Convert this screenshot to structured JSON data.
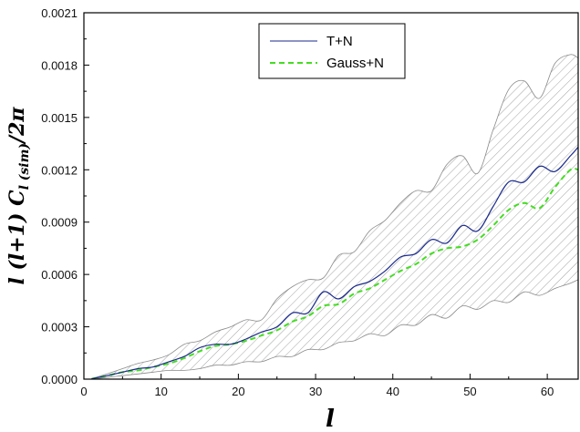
{
  "chart_data": {
    "type": "line",
    "xlabel": "l",
    "ylabel": "l (l+1) C_{l(sim)}/2π",
    "ylabel_main": "l (l+1) C",
    "ylabel_sub": "l (sim)",
    "ylabel_tail": "/2π",
    "xlim": [
      0,
      64
    ],
    "ylim": [
      0,
      0.0021
    ],
    "x_ticks": [
      0,
      10,
      20,
      30,
      40,
      50,
      60
    ],
    "x_tick_labels": [
      "0",
      "10",
      "20",
      "30",
      "40",
      "50",
      "60"
    ],
    "y_ticks": [
      0,
      0.0003,
      0.0006,
      0.0009,
      0.0012,
      0.0015,
      0.0018,
      0.0021
    ],
    "y_tick_labels": [
      "0.0000",
      "0.0003",
      "0.0006",
      "0.0009",
      "0.0012",
      "0.0015",
      "0.0018",
      "0.0021"
    ],
    "grid": false,
    "legend_position": "top-center",
    "series": [
      {
        "name": "T+N",
        "style": "solid",
        "color": "#1a2a8c",
        "x": [
          1,
          3,
          5,
          7,
          9,
          11,
          13,
          15,
          17,
          19,
          21,
          23,
          25,
          27,
          29,
          31,
          33,
          35,
          37,
          39,
          41,
          43,
          45,
          47,
          49,
          51,
          53,
          55,
          57,
          59,
          61,
          63,
          64
        ],
        "y": [
          2e-06,
          2e-05,
          4e-05,
          6e-05,
          7e-05,
          0.0001,
          0.00013,
          0.00018,
          0.0002,
          0.0002,
          0.00023,
          0.00027,
          0.0003,
          0.00038,
          0.00038,
          0.0005,
          0.00046,
          0.00053,
          0.00056,
          0.00062,
          0.0007,
          0.00072,
          0.0008,
          0.00078,
          0.00088,
          0.00085,
          0.00099,
          0.00113,
          0.00113,
          0.00122,
          0.00119,
          0.00128,
          0.00133
        ]
      },
      {
        "name": "Gauss+N",
        "style": "dashed",
        "color": "#44dd22",
        "x": [
          1,
          3,
          5,
          7,
          9,
          11,
          13,
          15,
          17,
          19,
          21,
          23,
          25,
          27,
          29,
          31,
          33,
          35,
          37,
          39,
          41,
          43,
          45,
          47,
          49,
          51,
          53,
          55,
          57,
          59,
          61,
          63,
          64
        ],
        "y": [
          2e-06,
          2e-05,
          4e-05,
          5e-05,
          7e-05,
          9e-05,
          0.00012,
          0.00016,
          0.00019,
          0.0002,
          0.00022,
          0.00025,
          0.00028,
          0.00033,
          0.00036,
          0.00042,
          0.00043,
          0.00049,
          0.00052,
          0.00057,
          0.00062,
          0.00066,
          0.00072,
          0.00075,
          0.00076,
          0.0008,
          0.00088,
          0.00097,
          0.00101,
          0.00098,
          0.0011,
          0.0012,
          0.0012
        ]
      }
    ],
    "band": {
      "x": [
        1,
        3,
        5,
        7,
        9,
        11,
        13,
        15,
        17,
        19,
        21,
        23,
        25,
        27,
        29,
        31,
        33,
        35,
        37,
        39,
        41,
        43,
        45,
        47,
        49,
        51,
        53,
        55,
        57,
        59,
        61,
        63,
        64
      ],
      "lower": [
        0,
        1e-05,
        2e-05,
        3e-05,
        4e-05,
        5e-05,
        5e-05,
        6e-05,
        8e-05,
        8e-05,
        0.0001,
        0.0001,
        0.00013,
        0.00013,
        0.00017,
        0.00017,
        0.00021,
        0.00022,
        0.00026,
        0.00025,
        0.00031,
        0.00031,
        0.00037,
        0.00035,
        0.00042,
        0.0004,
        0.00045,
        0.00044,
        0.0005,
        0.00048,
        0.00052,
        0.00055,
        0.00057
      ],
      "upper": [
        3e-06,
        3e-05,
        6e-05,
        9e-05,
        0.00011,
        0.00014,
        0.0002,
        0.00022,
        0.00027,
        0.0003,
        0.00034,
        0.00034,
        0.00046,
        0.00053,
        0.00057,
        0.00058,
        0.00071,
        0.00073,
        0.00085,
        0.00091,
        0.00101,
        0.00108,
        0.00108,
        0.00123,
        0.00128,
        0.00118,
        0.00143,
        0.00166,
        0.00171,
        0.00161,
        0.00181,
        0.00186,
        0.00184
      ]
    }
  }
}
